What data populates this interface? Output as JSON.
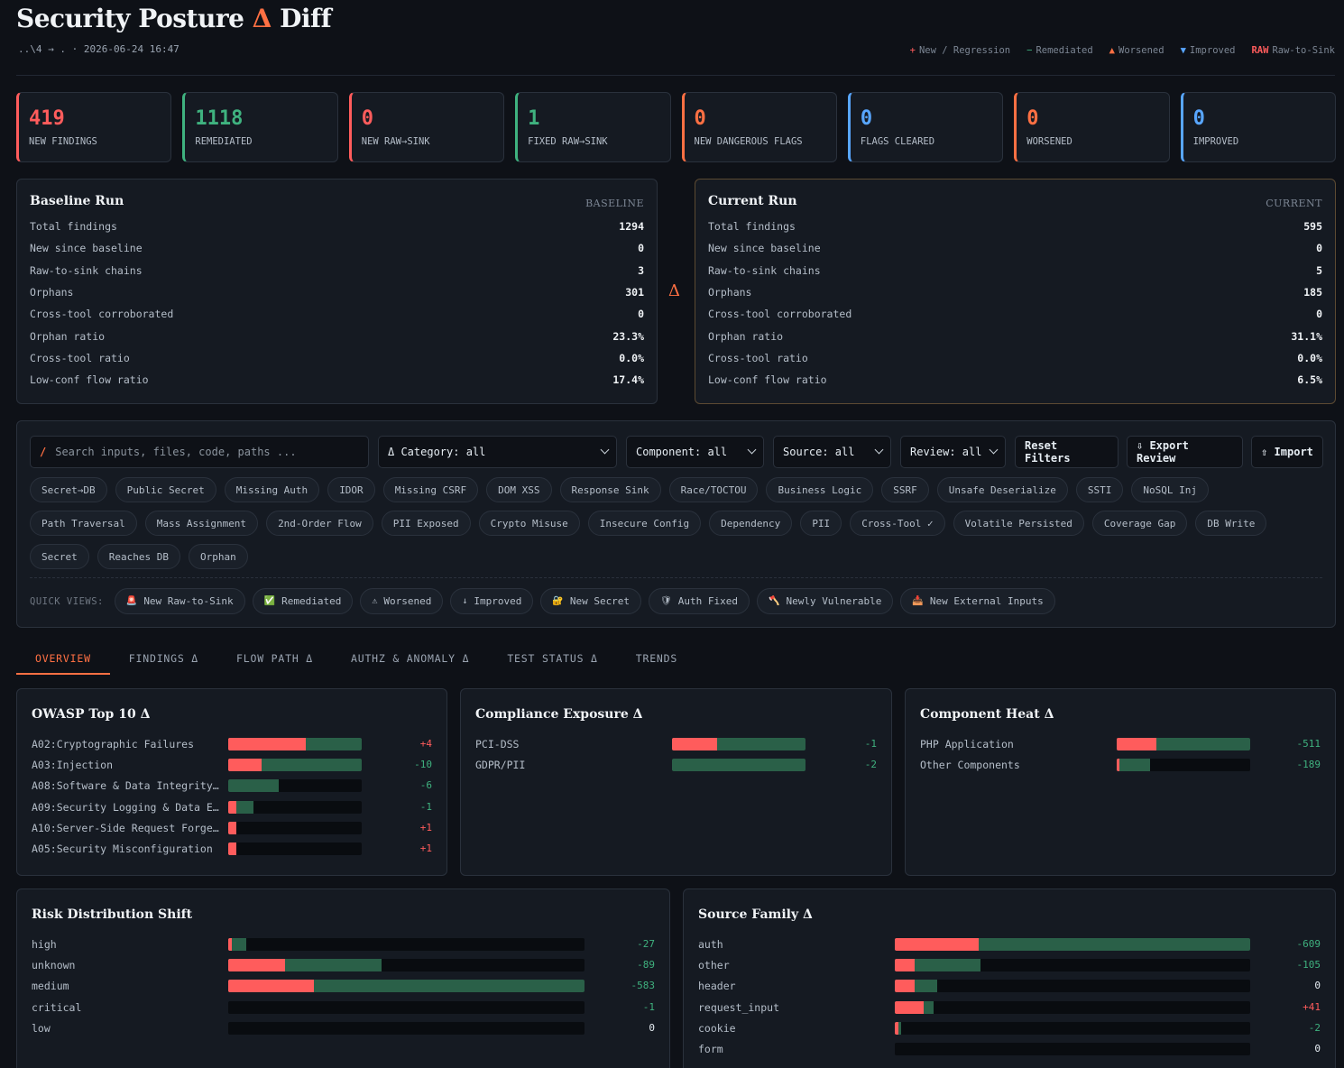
{
  "header": {
    "title_main": "Security Posture",
    "title_delta": "Δ",
    "title_end": "Diff",
    "subtitle": "..\\4 → . · 2026-06-24 16:47",
    "legend": [
      {
        "sym": "+",
        "label": "New / Regression",
        "color": "#ff5c5c"
      },
      {
        "sym": "−",
        "label": "Remediated",
        "color": "#3fb27f"
      },
      {
        "sym": "▲",
        "label": "Worsened",
        "color": "#ff7043"
      },
      {
        "sym": "▼",
        "label": "Improved",
        "color": "#58a6ff"
      },
      {
        "sym": "RAW",
        "label": "Raw-to-Sink",
        "color": "#ff5c5c"
      }
    ]
  },
  "kpis": [
    {
      "value": "419",
      "label": "NEW FINDINGS",
      "color": "#ff5c5c"
    },
    {
      "value": "1118",
      "label": "REMEDIATED",
      "color": "#3fb27f"
    },
    {
      "value": "0",
      "label": "NEW RAW→SINK",
      "color": "#ff5c5c"
    },
    {
      "value": "1",
      "label": "FIXED RAW→SINK",
      "color": "#3fb27f"
    },
    {
      "value": "0",
      "label": "NEW DANGEROUS FLAGS",
      "color": "#ff7043"
    },
    {
      "value": "0",
      "label": "FLAGS CLEARED",
      "color": "#58a6ff"
    },
    {
      "value": "0",
      "label": "WORSENED",
      "color": "#ff7043"
    },
    {
      "value": "0",
      "label": "IMPROVED",
      "color": "#58a6ff"
    }
  ],
  "baseline": {
    "title": "Baseline Run",
    "tag": "BASELINE",
    "rows": [
      {
        "label": "Total findings",
        "value": "1294"
      },
      {
        "label": "New since baseline",
        "value": "0"
      },
      {
        "label": "Raw-to-sink chains",
        "value": "3"
      },
      {
        "label": "Orphans",
        "value": "301"
      },
      {
        "label": "Cross-tool corroborated",
        "value": "0"
      },
      {
        "label": "Orphan ratio",
        "value": "23.3%"
      },
      {
        "label": "Cross-tool ratio",
        "value": "0.0%"
      },
      {
        "label": "Low-conf flow ratio",
        "value": "17.4%"
      }
    ]
  },
  "delta_symbol": "Δ",
  "current": {
    "title": "Current Run",
    "tag": "CURRENT",
    "rows": [
      {
        "label": "Total findings",
        "value": "595"
      },
      {
        "label": "New since baseline",
        "value": "0"
      },
      {
        "label": "Raw-to-sink chains",
        "value": "5"
      },
      {
        "label": "Orphans",
        "value": "185"
      },
      {
        "label": "Cross-tool corroborated",
        "value": "0"
      },
      {
        "label": "Orphan ratio",
        "value": "31.1%"
      },
      {
        "label": "Cross-tool ratio",
        "value": "0.0%"
      },
      {
        "label": "Low-conf flow ratio",
        "value": "6.5%"
      }
    ]
  },
  "filters": {
    "search_slash": "/",
    "search_placeholder": "Search inputs, files, code, paths ...",
    "category": "Δ Category: all",
    "component": "Component: all",
    "source": "Source: all",
    "review": "Review: all",
    "reset": "Reset Filters",
    "export": "⇩ Export Review",
    "import": "⇧ Import"
  },
  "chips": [
    "Secret→DB",
    "Public Secret",
    "Missing Auth",
    "IDOR",
    "Missing CSRF",
    "DOM XSS",
    "Response Sink",
    "Race/TOCTOU",
    "Business Logic",
    "SSRF",
    "Unsafe Deserialize",
    "SSTI",
    "NoSQL Inj",
    "Path Traversal",
    "Mass Assignment",
    "2nd-Order Flow",
    "PII Exposed",
    "Crypto Misuse",
    "Insecure Config",
    "Dependency",
    "PII",
    "Cross-Tool ✓",
    "Volatile Persisted",
    "Coverage Gap",
    "DB Write",
    "Secret",
    "Reaches DB",
    "Orphan"
  ],
  "quick_views": {
    "label": "QUICK VIEWS:",
    "items": [
      {
        "icon": "🚨",
        "label": "New Raw-to-Sink"
      },
      {
        "icon": "✅",
        "label": "Remediated"
      },
      {
        "icon": "⚠",
        "label": "Worsened"
      },
      {
        "icon": "↓",
        "label": "Improved"
      },
      {
        "icon": "🔐",
        "label": "New Secret"
      },
      {
        "icon": "🛡",
        "label": "Auth Fixed"
      },
      {
        "icon": "🪓",
        "label": "Newly Vulnerable"
      },
      {
        "icon": "📥",
        "label": "New External Inputs"
      }
    ]
  },
  "tabs": [
    "OVERVIEW",
    "FINDINGS Δ",
    "FLOW PATH Δ",
    "AUTHZ & ANOMALY Δ",
    "TEST STATUS Δ",
    "TRENDS"
  ],
  "owasp": {
    "title": "OWASP Top 10 Δ",
    "rows": [
      {
        "name": "A02:Cryptographic Failures",
        "red": 0.58,
        "total": 1.0,
        "delta": "+4"
      },
      {
        "name": "A03:Injection",
        "red": 0.25,
        "total": 1.0,
        "delta": "-10"
      },
      {
        "name": "A08:Software & Data Integrity Failures",
        "red": 0.0,
        "total": 0.38,
        "delta": "-6"
      },
      {
        "name": "A09:Security Logging & Data Exposure",
        "red": 0.06,
        "total": 0.19,
        "delta": "-1"
      },
      {
        "name": "A10:Server-Side Request Forgery",
        "red": 0.06,
        "total": 0.06,
        "delta": "+1"
      },
      {
        "name": "A05:Security Misconfiguration",
        "red": 0.06,
        "total": 0.06,
        "delta": "+1"
      }
    ]
  },
  "compliance": {
    "title": "Compliance Exposure Δ",
    "rows": [
      {
        "name": "PCI-DSS",
        "red": 0.34,
        "total": 1.0,
        "delta": "-1"
      },
      {
        "name": "GDPR/PII",
        "red": 0.0,
        "total": 1.0,
        "delta": "-2"
      }
    ]
  },
  "component_heat": {
    "title": "Component Heat Δ",
    "rows": [
      {
        "name": "PHP Application",
        "red": 0.3,
        "total": 1.0,
        "delta": "-511"
      },
      {
        "name": "Other Components",
        "red": 0.02,
        "total": 0.25,
        "delta": "-189"
      }
    ]
  },
  "risk": {
    "title": "Risk Distribution Shift",
    "rows": [
      {
        "name": "high",
        "red": 0.01,
        "total": 0.05,
        "delta": "-27"
      },
      {
        "name": "unknown",
        "red": 0.16,
        "total": 0.43,
        "delta": "-89"
      },
      {
        "name": "medium",
        "red": 0.24,
        "total": 1.0,
        "delta": "-583"
      },
      {
        "name": "critical",
        "red": 0.0,
        "total": 0.0,
        "delta": "-1"
      },
      {
        "name": "low",
        "red": 0.0,
        "total": 0.0,
        "delta": "0"
      }
    ]
  },
  "source_family": {
    "title": "Source Family Δ",
    "rows": [
      {
        "name": "auth",
        "red": 0.235,
        "total": 1.0,
        "delta": "-609"
      },
      {
        "name": "other",
        "red": 0.055,
        "total": 0.24,
        "delta": "-105"
      },
      {
        "name": "header",
        "red": 0.055,
        "total": 0.12,
        "delta": "0"
      },
      {
        "name": "request_input",
        "red": 0.08,
        "total": 0.11,
        "delta": "+41"
      },
      {
        "name": "cookie",
        "red": 0.01,
        "total": 0.018,
        "delta": "-2"
      },
      {
        "name": "form",
        "red": 0.0,
        "total": 0.0,
        "delta": "0"
      }
    ]
  }
}
